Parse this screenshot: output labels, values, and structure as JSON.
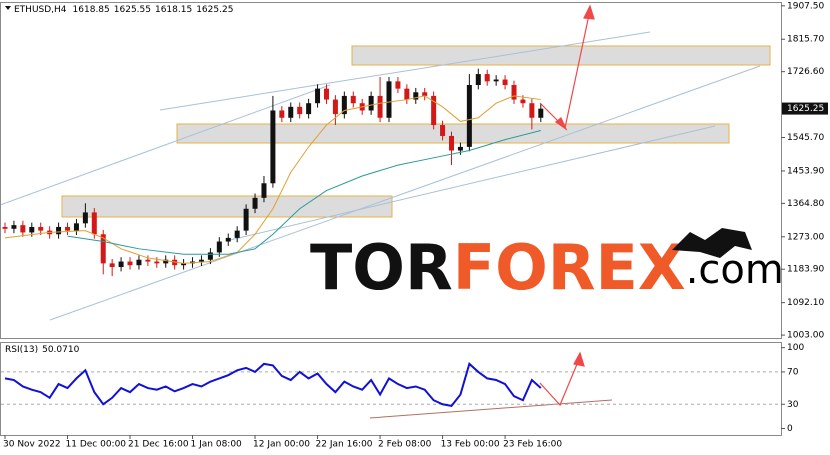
{
  "chart_data": [
    {
      "type": "candlestick",
      "title": "ETHUSD,H4",
      "readout": [
        1618.85,
        1625.55,
        1618.15,
        1625.25
      ],
      "categories": [
        "30 Nov 2022",
        null,
        null,
        null,
        null,
        null,
        null,
        "11 Dec 00:00",
        null,
        null,
        null,
        null,
        null,
        null,
        "21 Dec 16:00",
        null,
        null,
        null,
        null,
        null,
        null,
        "1 Jan 08:00",
        null,
        null,
        null,
        null,
        null,
        null,
        "12 Jan 00:00",
        null,
        null,
        null,
        null,
        null,
        null,
        "22 Jan 16:00",
        null,
        null,
        null,
        null,
        null,
        null,
        "2 Feb 08:00",
        null,
        null,
        null,
        null,
        null,
        null,
        "13 Feb 00:00",
        null,
        null,
        null,
        null,
        null,
        null,
        "23 Feb 16:00",
        null,
        null,
        null,
        null
      ],
      "open": [
        1300,
        1295,
        1305,
        1285,
        1300,
        1290,
        1280,
        1300,
        1290,
        1310,
        1340,
        1280,
        1200,
        1190,
        1205,
        1195,
        1210,
        1205,
        1200,
        1210,
        1195,
        1200,
        1205,
        1210,
        1230,
        1260,
        1270,
        1290,
        1350,
        1380,
        1420,
        1620,
        1600,
        1630,
        1610,
        1640,
        1680,
        1650,
        1610,
        1660,
        1640,
        1620,
        1660,
        1600,
        1700,
        1680,
        1650,
        1670,
        1660,
        1580,
        1550,
        1510,
        1520,
        1690,
        1720,
        1700,
        1705,
        1690,
        1650,
        1640,
        1600
      ],
      "high": [
        1312,
        1317,
        1317,
        1312,
        1312,
        1302,
        1312,
        1312,
        1322,
        1365,
        1352,
        1292,
        1212,
        1217,
        1217,
        1222,
        1222,
        1217,
        1222,
        1222,
        1212,
        1217,
        1222,
        1242,
        1272,
        1282,
        1302,
        1362,
        1392,
        1440,
        1660,
        1632,
        1642,
        1642,
        1652,
        1692,
        1692,
        1662,
        1672,
        1672,
        1652,
        1672,
        1712,
        1712,
        1712,
        1692,
        1682,
        1682,
        1672,
        1592,
        1562,
        1532,
        1720,
        1735,
        1732,
        1717,
        1717,
        1702,
        1662,
        1652,
        1637
      ],
      "low": [
        1283,
        1283,
        1273,
        1273,
        1278,
        1268,
        1268,
        1278,
        1278,
        1298,
        1268,
        1170,
        1165,
        1178,
        1183,
        1183,
        1193,
        1188,
        1188,
        1183,
        1183,
        1188,
        1193,
        1198,
        1218,
        1248,
        1258,
        1278,
        1338,
        1368,
        1408,
        1588,
        1588,
        1598,
        1598,
        1628,
        1638,
        1580,
        1598,
        1628,
        1608,
        1608,
        1588,
        1588,
        1668,
        1638,
        1638,
        1648,
        1568,
        1538,
        1470,
        1498,
        1508,
        1678,
        1688,
        1688,
        1678,
        1638,
        1628,
        1568,
        1588
      ],
      "close": [
        1295,
        1305,
        1285,
        1300,
        1290,
        1280,
        1300,
        1290,
        1310,
        1340,
        1280,
        1200,
        1190,
        1205,
        1195,
        1210,
        1205,
        1200,
        1210,
        1195,
        1200,
        1205,
        1210,
        1230,
        1260,
        1270,
        1290,
        1350,
        1380,
        1420,
        1620,
        1600,
        1630,
        1610,
        1640,
        1680,
        1650,
        1610,
        1660,
        1640,
        1620,
        1660,
        1600,
        1700,
        1680,
        1650,
        1670,
        1660,
        1580,
        1550,
        1510,
        1520,
        1690,
        1720,
        1700,
        1705,
        1690,
        1650,
        1640,
        1600,
        1625
      ],
      "up_color": "#111111",
      "down_color": "#d41818",
      "series": [
        {
          "color": "#e0a030",
          "x": [
            0,
            5,
            9,
            11,
            13,
            16,
            20,
            23,
            26,
            28,
            30,
            32,
            34,
            36,
            38,
            42,
            45,
            47,
            49,
            51,
            53,
            55,
            57,
            60
          ],
          "values": [
            1270,
            1285,
            1290,
            1270,
            1240,
            1215,
            1200,
            1205,
            1230,
            1280,
            1350,
            1450,
            1520,
            1580,
            1620,
            1640,
            1650,
            1660,
            1630,
            1590,
            1600,
            1640,
            1660,
            1650
          ]
        },
        {
          "color": "#2a9a9a",
          "x": [
            7,
            11,
            15,
            20,
            25,
            28,
            30,
            33,
            36,
            40,
            44,
            48,
            52,
            56,
            60
          ],
          "values": [
            1275,
            1260,
            1240,
            1225,
            1225,
            1240,
            1280,
            1350,
            1400,
            1440,
            1470,
            1490,
            1510,
            1540,
            1565
          ]
        }
      ],
      "ylim": [
        995,
        1918
      ],
      "yticks": [
        {
          "value": 1907.5,
          "label": "1907.50"
        },
        {
          "value": 1815.7,
          "label": "1815.70"
        },
        {
          "value": 1726.6,
          "label": "1726.60"
        },
        {
          "value": 1545.7,
          "label": "1545.70"
        },
        {
          "value": 1453.9,
          "label": "1453.90"
        },
        {
          "value": 1364.8,
          "label": "1364.80"
        },
        {
          "value": 1273,
          "label": "1273.00"
        },
        {
          "value": 1183.9,
          "label": "1183.90"
        },
        {
          "value": 1092.1,
          "label": "1092.10"
        },
        {
          "value": 1003,
          "label": "1003.00"
        }
      ],
      "watermark": [
        "TOR",
        "FOREX",
        ".com"
      ]
    },
    {
      "type": "line",
      "title": "RSI(13)",
      "readout": {
        "value": 50.071,
        "label": "50.0710"
      },
      "color": "#1010d8",
      "values": [
        62,
        60,
        52,
        48,
        45,
        38,
        55,
        50,
        62,
        72,
        45,
        30,
        38,
        50,
        45,
        55,
        50,
        48,
        52,
        46,
        50,
        55,
        52,
        58,
        62,
        66,
        72,
        75,
        70,
        80,
        78,
        65,
        60,
        70,
        62,
        68,
        55,
        45,
        58,
        52,
        48,
        60,
        42,
        62,
        55,
        50,
        52,
        48,
        35,
        30,
        28,
        42,
        80,
        70,
        62,
        60,
        55,
        40,
        35,
        60,
        50.071
      ],
      "ylim": [
        -8,
        107
      ],
      "yticks": [
        100,
        70,
        30,
        0
      ],
      "grid": [
        70,
        30
      ]
    }
  ]
}
